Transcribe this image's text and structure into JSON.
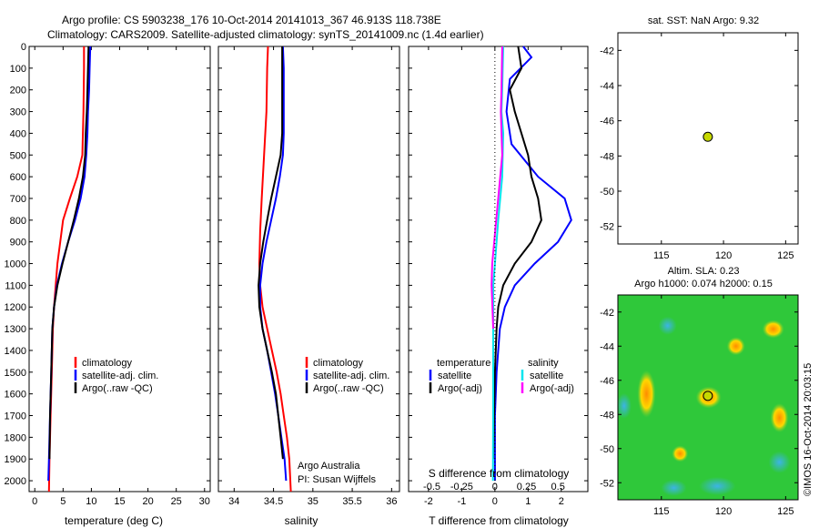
{
  "header": {
    "line1": "Argo profile: CS 5903238_176 10-Oct-2014 20141013_367 46.913S 118.738E",
    "line2": "Climatology: CARS2009. Satellite-adjusted climatology: synTS_20141009.nc (1.4d earlier)"
  },
  "colors": {
    "climatology": "#ff0000",
    "satellite": "#0000ff",
    "argo": "#000000",
    "sal_sat": "#00e5ee",
    "sal_argo": "#ff00ff"
  },
  "credit": {
    "line1": "Argo Australia",
    "line2": "PI: Susan Wijffels"
  },
  "watermark": "©IMOS 16-Oct-2014 20:03:15",
  "chart_data": [
    {
      "type": "line",
      "id": "temperature",
      "xlabel": "temperature (deg C)",
      "ylabel": "",
      "xlim": [
        -1,
        31
      ],
      "ylim": [
        2050,
        0
      ],
      "xticks": [
        0,
        5,
        10,
        15,
        20,
        25,
        30
      ],
      "yticks": [
        0,
        100,
        200,
        300,
        400,
        500,
        600,
        700,
        800,
        900,
        1000,
        1100,
        1200,
        1300,
        1400,
        1500,
        1600,
        1700,
        1800,
        1900,
        2000
      ],
      "legend": [
        "climatology",
        "satellite-adj. clim.",
        "Argo(..raw -QC)"
      ],
      "series": [
        {
          "name": "climatology",
          "color": "#ff0000",
          "points": [
            [
              8.7,
              0
            ],
            [
              8.7,
              100
            ],
            [
              8.6,
              300
            ],
            [
              8.4,
              500
            ],
            [
              7.5,
              600
            ],
            [
              6.2,
              700
            ],
            [
              5.0,
              800
            ],
            [
              4.5,
              900
            ],
            [
              4.0,
              1000
            ],
            [
              3.7,
              1100
            ],
            [
              3.4,
              1200
            ],
            [
              3.2,
              1300
            ],
            [
              3.0,
              1500
            ],
            [
              2.8,
              1700
            ],
            [
              2.6,
              1900
            ],
            [
              2.5,
              2050
            ]
          ]
        },
        {
          "name": "satellite-adj. clim.",
          "color": "#0000ff",
          "points": [
            [
              9.8,
              0
            ],
            [
              9.7,
              100
            ],
            [
              9.6,
              200
            ],
            [
              9.4,
              300
            ],
            [
              9.3,
              400
            ],
            [
              9.1,
              500
            ],
            [
              8.8,
              600
            ],
            [
              8.1,
              700
            ],
            [
              7.1,
              800
            ],
            [
              5.9,
              900
            ],
            [
              4.8,
              1000
            ],
            [
              3.9,
              1100
            ],
            [
              3.4,
              1200
            ],
            [
              3.1,
              1300
            ],
            [
              2.9,
              1500
            ],
            [
              2.7,
              1700
            ],
            [
              2.5,
              1900
            ],
            [
              2.4,
              2000
            ]
          ]
        },
        {
          "name": "Argo(..raw -QC)",
          "color": "#000000",
          "points": [
            [
              9.5,
              0
            ],
            [
              9.4,
              100
            ],
            [
              9.3,
              200
            ],
            [
              9.2,
              300
            ],
            [
              9.0,
              400
            ],
            [
              8.9,
              500
            ],
            [
              8.5,
              600
            ],
            [
              7.8,
              700
            ],
            [
              6.9,
              800
            ],
            [
              5.9,
              900
            ],
            [
              4.9,
              1000
            ],
            [
              4.0,
              1100
            ],
            [
              3.4,
              1200
            ],
            [
              3.1,
              1300
            ],
            [
              2.9,
              1500
            ],
            [
              2.7,
              1700
            ],
            [
              2.6,
              1900
            ]
          ]
        }
      ]
    },
    {
      "type": "line",
      "id": "salinity",
      "xlabel": "salinity",
      "ylabel": "",
      "xlim": [
        33.8,
        36.1
      ],
      "ylim": [
        2050,
        0
      ],
      "xticks": [
        34,
        34.5,
        35,
        35.5,
        36
      ],
      "legend": [
        "climatology",
        "satellite-adj. clim.",
        "Argo(..raw -QC)"
      ],
      "series": [
        {
          "name": "climatology",
          "color": "#ff0000",
          "points": [
            [
              34.43,
              0
            ],
            [
              34.42,
              100
            ],
            [
              34.41,
              300
            ],
            [
              34.38,
              500
            ],
            [
              34.35,
              700
            ],
            [
              34.33,
              850
            ],
            [
              34.32,
              1000
            ],
            [
              34.33,
              1100
            ],
            [
              34.36,
              1200
            ],
            [
              34.42,
              1300
            ],
            [
              34.48,
              1400
            ],
            [
              34.54,
              1500
            ],
            [
              34.59,
              1600
            ],
            [
              34.63,
              1700
            ],
            [
              34.67,
              1800
            ],
            [
              34.7,
              1900
            ],
            [
              34.72,
              2050
            ]
          ]
        },
        {
          "name": "satellite-adj. clim.",
          "color": "#0000ff",
          "points": [
            [
              34.62,
              0
            ],
            [
              34.63,
              100
            ],
            [
              34.63,
              200
            ],
            [
              34.63,
              400
            ],
            [
              34.62,
              500
            ],
            [
              34.58,
              600
            ],
            [
              34.53,
              700
            ],
            [
              34.47,
              800
            ],
            [
              34.41,
              900
            ],
            [
              34.36,
              1000
            ],
            [
              34.33,
              1100
            ],
            [
              34.33,
              1200
            ],
            [
              34.36,
              1300
            ],
            [
              34.42,
              1400
            ],
            [
              34.47,
              1500
            ],
            [
              34.52,
              1600
            ],
            [
              34.56,
              1700
            ],
            [
              34.6,
              1800
            ],
            [
              34.64,
              1900
            ],
            [
              34.66,
              2000
            ]
          ]
        },
        {
          "name": "Argo(..raw -QC)",
          "color": "#000000",
          "points": [
            [
              34.61,
              0
            ],
            [
              34.61,
              100
            ],
            [
              34.61,
              200
            ],
            [
              34.61,
              400
            ],
            [
              34.59,
              500
            ],
            [
              34.53,
              600
            ],
            [
              34.47,
              700
            ],
            [
              34.42,
              800
            ],
            [
              34.37,
              900
            ],
            [
              34.33,
              1000
            ],
            [
              34.31,
              1100
            ],
            [
              34.32,
              1200
            ],
            [
              34.36,
              1300
            ],
            [
              34.42,
              1400
            ],
            [
              34.48,
              1500
            ],
            [
              34.53,
              1600
            ],
            [
              34.56,
              1700
            ],
            [
              34.59,
              1800
            ],
            [
              34.62,
              1900
            ]
          ]
        }
      ]
    },
    {
      "type": "line",
      "id": "differences",
      "xlabel": "T difference from climatology",
      "xlabel_top": "S difference from climatology",
      "xlim": [
        -2.6,
        2.8
      ],
      "ylim": [
        2050,
        0
      ],
      "xticks": [
        -2,
        -1,
        0,
        1,
        2
      ],
      "xticks_S": [
        "-0.5",
        "-0.25",
        "0",
        "0.25",
        "0.5"
      ],
      "legend_titles": [
        "temperature",
        "salinity"
      ],
      "legend": [
        "satellite",
        "Argo(-adj)",
        "satellite",
        "Argo(-adj)"
      ],
      "series": [
        {
          "name": "temperature satellite",
          "color": "#0000ff",
          "points": [
            [
              0.85,
              0
            ],
            [
              1.1,
              50
            ],
            [
              0.45,
              150
            ],
            [
              0.35,
              300
            ],
            [
              0.5,
              450
            ],
            [
              1.3,
              600
            ],
            [
              2.1,
              700
            ],
            [
              2.3,
              800
            ],
            [
              1.9,
              900
            ],
            [
              1.2,
              1000
            ],
            [
              0.6,
              1100
            ],
            [
              0.3,
              1200
            ],
            [
              0.15,
              1300
            ],
            [
              0.05,
              1500
            ],
            [
              0,
              1700
            ],
            [
              0,
              2000
            ]
          ]
        },
        {
          "name": "temperature Argo(-adj)",
          "color": "#000000",
          "points": [
            [
              0.7,
              0
            ],
            [
              0.8,
              100
            ],
            [
              0.45,
              200
            ],
            [
              0.6,
              300
            ],
            [
              0.8,
              400
            ],
            [
              1.0,
              500
            ],
            [
              1.1,
              600
            ],
            [
              1.3,
              700
            ],
            [
              1.4,
              800
            ],
            [
              1.1,
              900
            ],
            [
              0.6,
              1000
            ],
            [
              0.25,
              1100
            ],
            [
              0.1,
              1200
            ],
            [
              0.05,
              1300
            ],
            [
              0,
              1500
            ],
            [
              -0.05,
              1900
            ]
          ]
        },
        {
          "name": "salinity satellite",
          "color": "#00e5ee",
          "points": [
            [
              0.25,
              0
            ],
            [
              0.22,
              200
            ],
            [
              0.2,
              300
            ],
            [
              0.25,
              400
            ],
            [
              0.22,
              600
            ],
            [
              0.1,
              800
            ],
            [
              0,
              1000
            ],
            [
              -0.05,
              1100
            ],
            [
              -0.05,
              1300
            ],
            [
              -0.05,
              1600
            ],
            [
              -0.06,
              2000
            ]
          ]
        },
        {
          "name": "salinity Argo(-adj)",
          "color": "#ff00ff",
          "points": [
            [
              0.22,
              0
            ],
            [
              0.2,
              200
            ],
            [
              0.18,
              300
            ],
            [
              0.22,
              500
            ],
            [
              0.1,
              700
            ],
            [
              -0.08,
              1000
            ],
            [
              -0.1,
              1100
            ],
            [
              -0.05,
              1300
            ]
          ]
        }
      ]
    },
    {
      "type": "scatter",
      "id": "sst_map",
      "title": "sat. SST: NaN Argo: 9.32",
      "xlim": [
        111.5,
        126
      ],
      "ylim": [
        -53,
        -41
      ],
      "xticks": [
        115,
        120,
        125
      ],
      "yticks": [
        -42,
        -44,
        -46,
        -48,
        -50,
        -52
      ],
      "points": [
        [
          118.74,
          -46.91
        ]
      ]
    },
    {
      "type": "heatmap",
      "id": "sla_map",
      "title_line1": "Altim. SLA: 0.23",
      "title_line2": "Argo h1000: 0.074 h2000: 0.15",
      "xlim": [
        111.5,
        126
      ],
      "ylim": [
        -53,
        -41
      ],
      "xticks": [
        115,
        120,
        125
      ],
      "yticks": [
        -42,
        -44,
        -46,
        -48,
        -50,
        -52
      ],
      "points": [
        [
          118.74,
          -46.91
        ]
      ]
    }
  ]
}
